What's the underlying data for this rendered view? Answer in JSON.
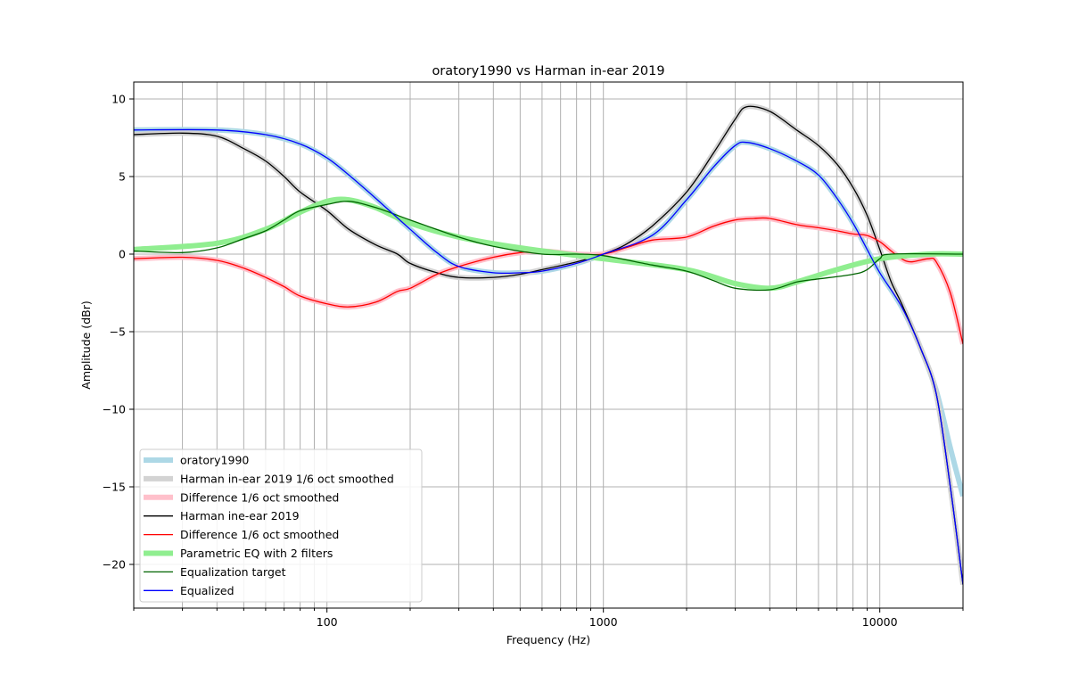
{
  "chart_data": {
    "type": "line",
    "title": "oratory1990 vs Harman in-ear 2019",
    "xlabel": "Frequency (Hz)",
    "ylabel": "Amplitude (dBr)",
    "xscale": "log",
    "xlim": [
      20,
      20000
    ],
    "ylim": [
      -23,
      11
    ],
    "xticks": [
      {
        "value": 100,
        "label": "100"
      },
      {
        "value": 1000,
        "label": "1000"
      },
      {
        "value": 10000,
        "label": "10000"
      }
    ],
    "yticks": [
      {
        "value": 10,
        "label": "10"
      },
      {
        "value": 5,
        "label": "5"
      },
      {
        "value": 0,
        "label": "0"
      },
      {
        "value": -5,
        "label": "−5"
      },
      {
        "value": -10,
        "label": "−10"
      },
      {
        "value": -15,
        "label": "−15"
      },
      {
        "value": -20,
        "label": "−20"
      }
    ],
    "grid": true,
    "legend_position": "lower-left",
    "series": [
      {
        "name": "oratory1990",
        "color": "#add8e6",
        "width": 6,
        "style": "band",
        "x": [
          20,
          40,
          60,
          80,
          100,
          120,
          150,
          200,
          250,
          300,
          400,
          500,
          600,
          800,
          1000,
          1500,
          2000,
          2500,
          3000,
          3300,
          4000,
          5000,
          6000,
          7000,
          8000,
          9000,
          10000,
          12000,
          14000,
          16000,
          18000,
          20000
        ],
        "y": [
          8.0,
          8.0,
          7.7,
          7.1,
          6.2,
          5.1,
          3.6,
          1.6,
          0.1,
          -0.8,
          -1.2,
          -1.2,
          -1.1,
          -0.6,
          0.0,
          1.2,
          3.5,
          5.6,
          7.0,
          7.2,
          6.8,
          6.0,
          5.1,
          3.6,
          2.0,
          0.3,
          -1.2,
          -3.4,
          -6.0,
          -8.8,
          -12.5,
          -15.6
        ]
      },
      {
        "name": "Harman in-ear 2019 1/6 oct smoothed",
        "color": "#d3d3d3",
        "width": 6,
        "style": "band",
        "x": [
          20,
          30,
          40,
          50,
          60,
          70,
          80,
          100,
          120,
          150,
          180,
          200,
          250,
          300,
          400,
          500,
          600,
          800,
          1000,
          1200,
          1500,
          2000,
          2500,
          3000,
          3300,
          4000,
          5000,
          6000,
          7000,
          8000,
          9000,
          10000,
          11000,
          12000,
          14000,
          16000,
          18000,
          20000
        ],
        "y": [
          7.7,
          7.8,
          7.6,
          6.8,
          6.0,
          5.0,
          4.0,
          2.8,
          1.6,
          0.6,
          0.0,
          -0.6,
          -1.2,
          -1.5,
          -1.5,
          -1.3,
          -1.0,
          -0.5,
          0.0,
          0.6,
          1.8,
          4.0,
          6.5,
          8.7,
          9.5,
          9.2,
          8.0,
          7.0,
          5.8,
          4.3,
          2.5,
          0.3,
          -1.8,
          -3.2,
          -6.0,
          -9.0,
          -15.0,
          -21.3
        ]
      },
      {
        "name": "Difference 1/6 oct smoothed",
        "color": "#ffc0cb",
        "width": 6,
        "style": "band",
        "x": [
          20,
          30,
          40,
          50,
          60,
          70,
          80,
          100,
          120,
          150,
          180,
          200,
          250,
          300,
          400,
          500,
          600,
          800,
          1000,
          1200,
          1500,
          2000,
          2500,
          3000,
          3500,
          4000,
          5000,
          6000,
          7000,
          8000,
          9000,
          10000,
          11000,
          12000,
          13000,
          15000,
          16000,
          18000,
          20000
        ],
        "y": [
          -0.3,
          -0.2,
          -0.4,
          -0.9,
          -1.5,
          -2.1,
          -2.7,
          -3.2,
          -3.4,
          -3.1,
          -2.4,
          -2.2,
          -1.3,
          -0.8,
          -0.2,
          0.1,
          0.2,
          0.0,
          0.0,
          0.4,
          0.9,
          1.1,
          1.8,
          2.2,
          2.3,
          2.3,
          1.9,
          1.7,
          1.5,
          1.3,
          1.2,
          0.8,
          0.2,
          -0.3,
          -0.5,
          -0.3,
          -0.5,
          -2.5,
          -5.8
        ]
      },
      {
        "name": "Harman ine-ear 2019",
        "color": "#000000",
        "width": 1.3,
        "style": "line",
        "x": [
          20,
          30,
          40,
          50,
          60,
          70,
          80,
          100,
          120,
          150,
          180,
          200,
          250,
          300,
          400,
          500,
          600,
          800,
          1000,
          1200,
          1500,
          2000,
          2500,
          3000,
          3300,
          4000,
          5000,
          6000,
          7000,
          8000,
          9000,
          10000,
          11000,
          12000,
          14000,
          16000,
          18000,
          20000
        ],
        "y": [
          7.7,
          7.8,
          7.6,
          6.8,
          6.0,
          5.0,
          4.0,
          2.8,
          1.6,
          0.6,
          0.0,
          -0.6,
          -1.2,
          -1.5,
          -1.5,
          -1.3,
          -1.0,
          -0.5,
          0.0,
          0.6,
          1.8,
          4.0,
          6.5,
          8.7,
          9.5,
          9.2,
          8.0,
          7.0,
          5.8,
          4.3,
          2.5,
          0.3,
          -1.8,
          -3.2,
          -6.0,
          -9.0,
          -15.0,
          -21.3
        ]
      },
      {
        "name": "Difference 1/6 oct smoothed",
        "color": "#ff0000",
        "width": 1.3,
        "style": "line",
        "x": [
          20,
          30,
          40,
          50,
          60,
          70,
          80,
          100,
          120,
          150,
          180,
          200,
          250,
          300,
          400,
          500,
          600,
          800,
          1000,
          1200,
          1500,
          2000,
          2500,
          3000,
          3500,
          4000,
          5000,
          6000,
          7000,
          8000,
          9000,
          10000,
          11000,
          12000,
          13000,
          15000,
          16000,
          18000,
          20000
        ],
        "y": [
          -0.3,
          -0.2,
          -0.4,
          -0.9,
          -1.5,
          -2.1,
          -2.7,
          -3.2,
          -3.4,
          -3.1,
          -2.4,
          -2.2,
          -1.3,
          -0.8,
          -0.2,
          0.1,
          0.2,
          0.0,
          0.0,
          0.4,
          0.9,
          1.1,
          1.8,
          2.2,
          2.3,
          2.3,
          1.9,
          1.7,
          1.5,
          1.3,
          1.2,
          0.8,
          0.2,
          -0.3,
          -0.5,
          -0.3,
          -0.5,
          -2.5,
          -5.8
        ]
      },
      {
        "name": "Parametric EQ with 2 filters",
        "color": "#90ee90",
        "width": 6,
        "style": "band",
        "x": [
          20,
          40,
          60,
          80,
          100,
          120,
          150,
          200,
          300,
          500,
          1000,
          2000,
          3000,
          4000,
          5000,
          7000,
          10000,
          15000,
          20000
        ],
        "y": [
          0.3,
          0.7,
          1.6,
          2.7,
          3.4,
          3.5,
          3.0,
          2.0,
          1.1,
          0.4,
          -0.3,
          -1.0,
          -1.9,
          -2.2,
          -1.8,
          -1.0,
          -0.3,
          0.0,
          0.0
        ]
      },
      {
        "name": "Equalization target",
        "color": "#006400",
        "width": 1.3,
        "style": "line",
        "x": [
          20,
          30,
          40,
          50,
          60,
          70,
          80,
          100,
          120,
          150,
          200,
          300,
          400,
          600,
          800,
          1000,
          1500,
          2000,
          2500,
          3000,
          4000,
          5000,
          6000,
          8000,
          9000,
          10000,
          11000,
          20000
        ],
        "y": [
          0.2,
          0.1,
          0.4,
          1.0,
          1.5,
          2.2,
          2.8,
          3.2,
          3.4,
          3.0,
          2.2,
          1.1,
          0.5,
          0.0,
          0.0,
          -0.1,
          -0.7,
          -1.1,
          -1.7,
          -2.2,
          -2.3,
          -1.8,
          -1.6,
          -1.3,
          -1.0,
          -0.3,
          0.0,
          0.0
        ]
      },
      {
        "name": "Equalized",
        "color": "#0000ff",
        "width": 1.3,
        "style": "line",
        "x": [
          20,
          40,
          60,
          80,
          100,
          120,
          150,
          200,
          250,
          300,
          400,
          500,
          600,
          800,
          1000,
          1500,
          2000,
          2500,
          3000,
          3300,
          4000,
          5000,
          6000,
          7000,
          8000,
          9000,
          10000,
          12000,
          14000,
          16000,
          18000,
          20000
        ],
        "y": [
          8.0,
          8.0,
          7.7,
          7.1,
          6.2,
          5.1,
          3.6,
          1.6,
          0.1,
          -0.8,
          -1.2,
          -1.2,
          -1.1,
          -0.6,
          0.0,
          1.2,
          3.5,
          5.6,
          7.0,
          7.2,
          6.8,
          6.0,
          5.1,
          3.6,
          2.0,
          0.3,
          -1.2,
          -3.4,
          -6.0,
          -9.0,
          -15.0,
          -21.3
        ]
      }
    ]
  }
}
